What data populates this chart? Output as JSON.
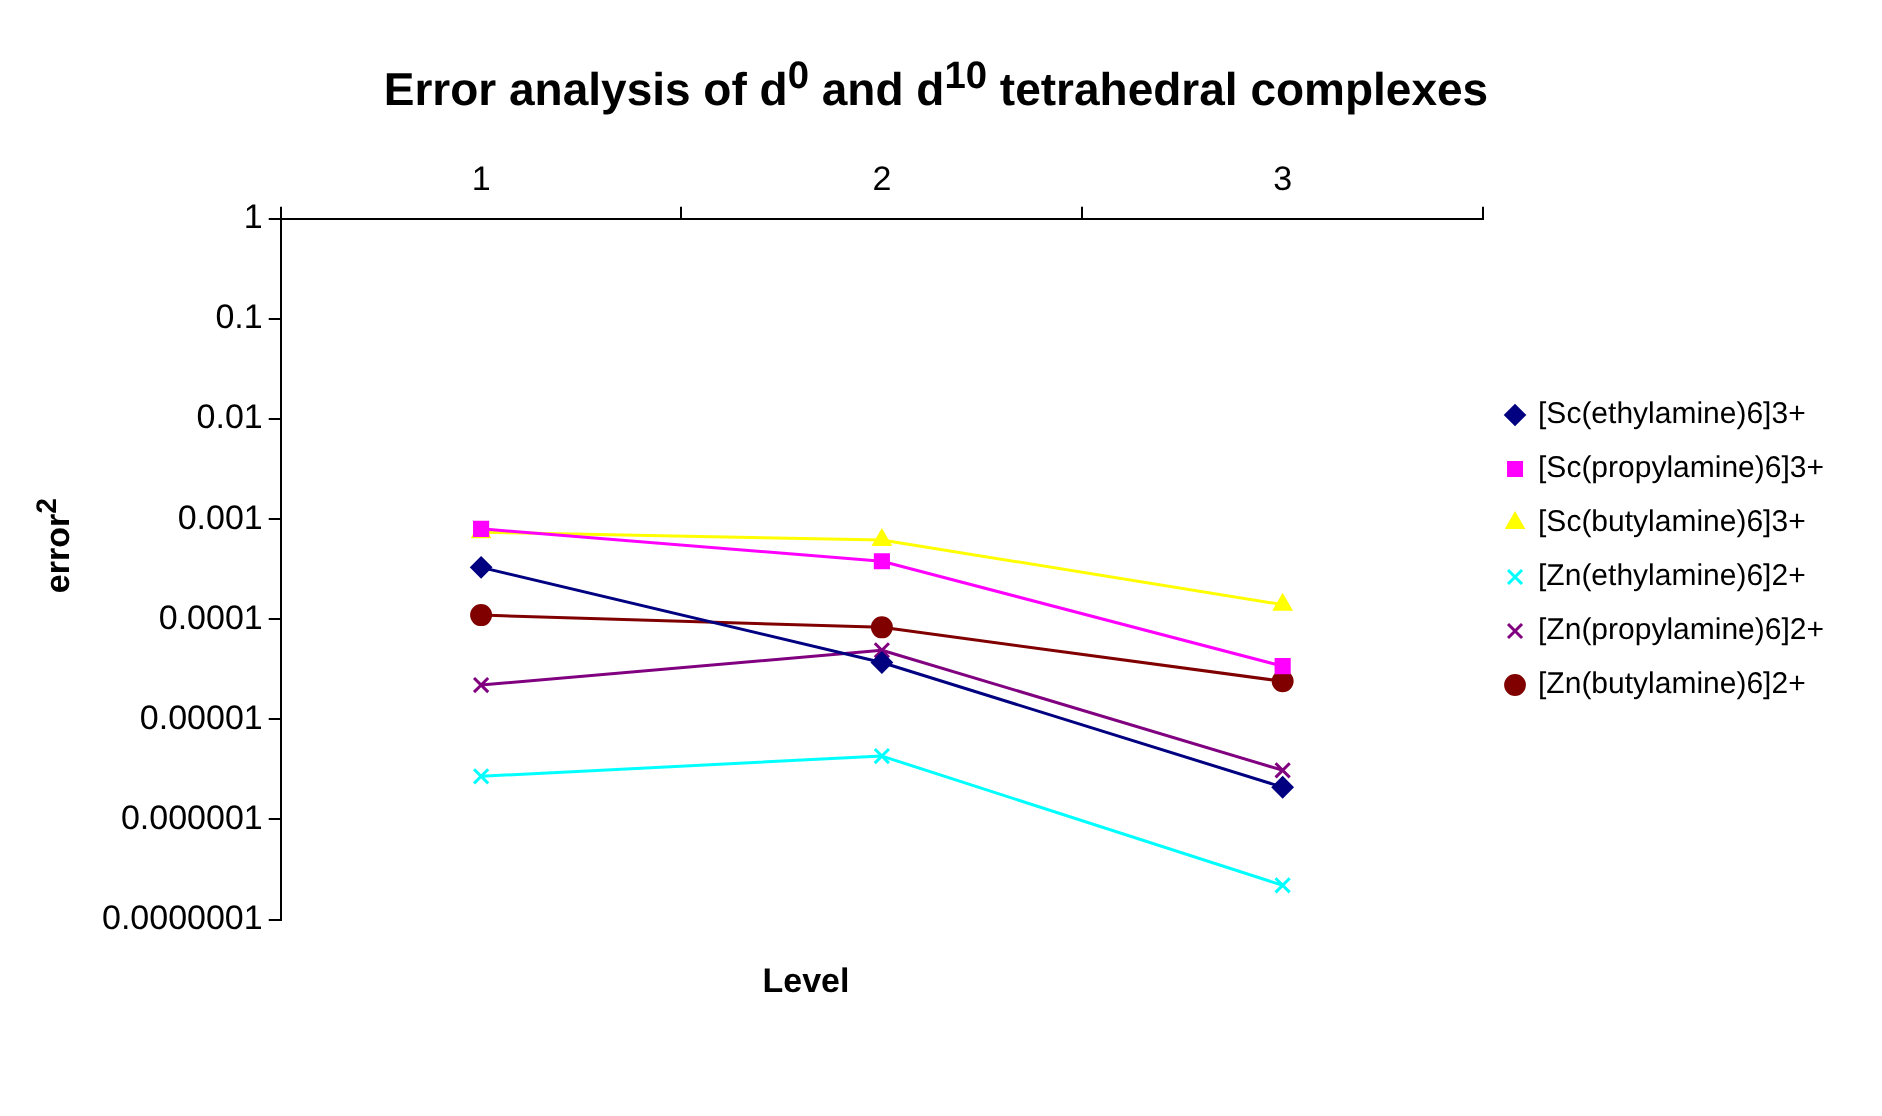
{
  "chart_data": {
    "type": "line",
    "title": "Error analysis of d$^{0}$ and d$^{10}$ tetrahedral complexes",
    "xlabel": "Level",
    "ylabel": "error$^{2}$",
    "categories": [
      "1",
      "2",
      "3"
    ],
    "log": "y",
    "ylim": [
      1e-07,
      1
    ],
    "yticks": [
      {
        "value": 1,
        "label": "1"
      },
      {
        "value": 0.1,
        "label": "0.1"
      },
      {
        "value": 0.01,
        "label": "0.01"
      },
      {
        "value": 0.001,
        "label": "0.001"
      },
      {
        "value": 0.0001,
        "label": "0.0001"
      },
      {
        "value": 1e-05,
        "label": "0.00001"
      },
      {
        "value": 1e-06,
        "label": "0.000001"
      },
      {
        "value": 1e-07,
        "label": "0.0000001"
      }
    ],
    "grid": false,
    "legend": "right",
    "series": [
      {
        "name": "[Sc(ethylamine)6]3+",
        "color": "#000080",
        "marker": "diamond",
        "values": [
          0.00033,
          3.7e-05,
          2.1e-06
        ]
      },
      {
        "name": "[Sc(propylamine)6]3+",
        "color": "#ff00ff",
        "marker": "square",
        "values": [
          0.0008,
          0.00038,
          3.4e-05
        ]
      },
      {
        "name": "[Sc(butylamine)6]3+",
        "color": "#ffff00",
        "marker": "triangle",
        "values": [
          0.00074,
          0.00062,
          0.00014
        ]
      },
      {
        "name": "[Zn(ethylamine)6]2+",
        "color": "#00ffff",
        "marker": "cross",
        "values": [
          2.7e-06,
          4.3e-06,
          2.2e-07
        ]
      },
      {
        "name": "[Zn(propylamine)6]2+",
        "color": "#800080",
        "marker": "cross",
        "values": [
          2.2e-05,
          4.9e-05,
          3.1e-06
        ]
      },
      {
        "name": "[Zn(butylamine)6]2+",
        "color": "#800000",
        "marker": "circle",
        "values": [
          0.00011,
          8.3e-05,
          2.4e-05
        ]
      }
    ]
  }
}
